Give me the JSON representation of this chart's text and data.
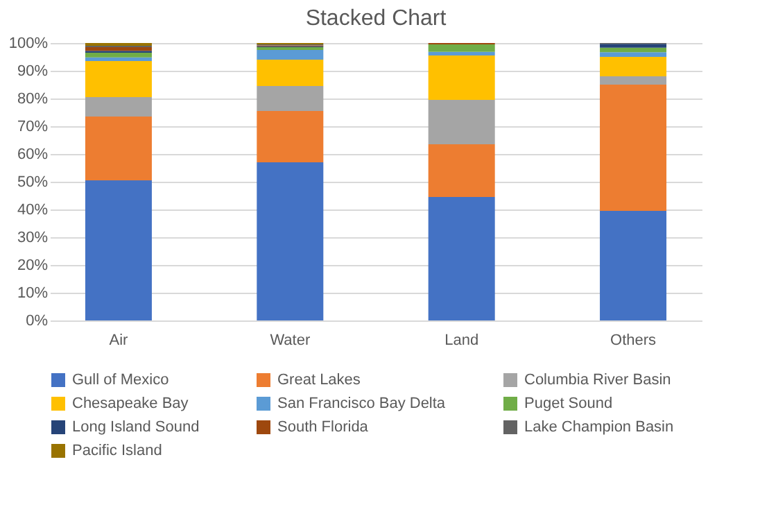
{
  "chart_data": {
    "type": "bar",
    "title": "Stacked Chart",
    "stacked": true,
    "categories": [
      "Air",
      "Water",
      "Land",
      "Others"
    ],
    "series": [
      {
        "name": "Gull of Mexico",
        "color": "#4472c4",
        "values": [
          50.5,
          57,
          44.5,
          39.5
        ]
      },
      {
        "name": "Great Lakes",
        "color": "#ed7d31",
        "values": [
          23,
          18.5,
          19,
          45.5
        ]
      },
      {
        "name": "Columbia River Basin",
        "color": "#a5a5a5",
        "values": [
          7,
          9,
          16,
          3
        ]
      },
      {
        "name": "Chesapeake Bay",
        "color": "#ffc000",
        "values": [
          13,
          9.5,
          16,
          7
        ]
      },
      {
        "name": "San Francisco Bay Delta",
        "color": "#5b9bd5",
        "values": [
          1.3,
          3.5,
          1.3,
          1.7
        ]
      },
      {
        "name": "Puget Sound",
        "color": "#70ad47",
        "values": [
          1.7,
          1,
          2.7,
          1.6
        ]
      },
      {
        "name": "Long Island Sound",
        "color": "#264478",
        "values": [
          0.7,
          0.3,
          0,
          1.4
        ]
      },
      {
        "name": "South Florida",
        "color": "#9e480e",
        "values": [
          1.3,
          0.3,
          0.5,
          0
        ]
      },
      {
        "name": "Lake Champion Basin",
        "color": "#636363",
        "values": [
          0.5,
          0.4,
          0,
          0.3
        ]
      },
      {
        "name": "Pacific Island",
        "color": "#997300",
        "values": [
          1,
          0.5,
          0,
          0
        ]
      }
    ],
    "ylim": [
      0,
      100
    ],
    "yticks": [
      {
        "value": 0,
        "label": "0%"
      },
      {
        "value": 10,
        "label": "10%"
      },
      {
        "value": 20,
        "label": "20%"
      },
      {
        "value": 30,
        "label": "30%"
      },
      {
        "value": 40,
        "label": "40%"
      },
      {
        "value": 50,
        "label": "50%"
      },
      {
        "value": 60,
        "label": "60%"
      },
      {
        "value": 70,
        "label": "70%"
      },
      {
        "value": 80,
        "label": "80%"
      },
      {
        "value": 90,
        "label": "90%"
      },
      {
        "value": 100,
        "label": "100%"
      }
    ],
    "grid": "y",
    "legend": "bottom"
  }
}
